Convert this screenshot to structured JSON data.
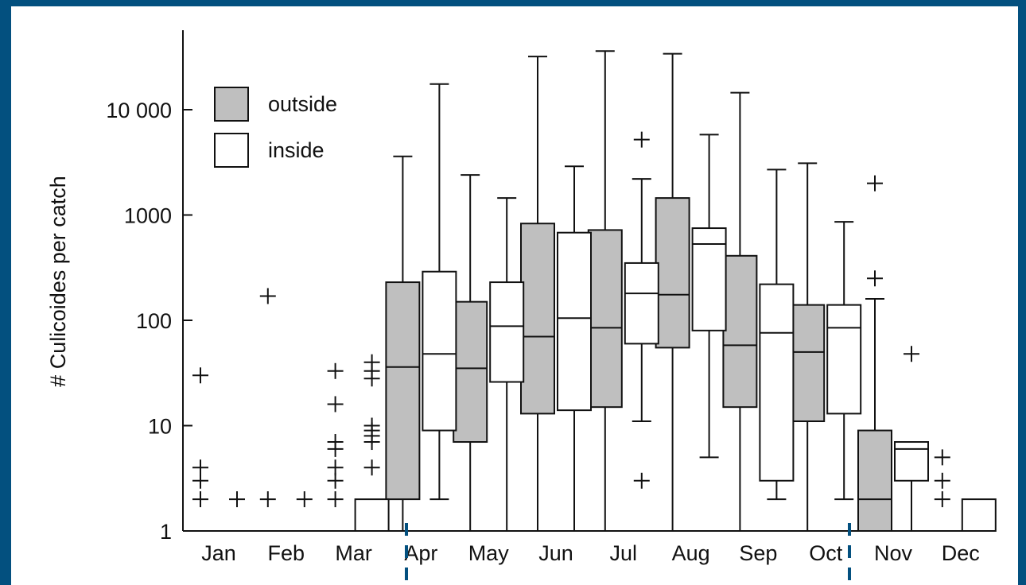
{
  "chart_data": {
    "type": "boxplot",
    "ylabel": "# Culicoides per catch",
    "yscale": "log",
    "ylim": [
      1,
      60000
    ],
    "yticks": [
      {
        "value": 1,
        "label": "1"
      },
      {
        "value": 10,
        "label": "10"
      },
      {
        "value": 100,
        "label": "100"
      },
      {
        "value": 1000,
        "label": "1000"
      },
      {
        "value": 10000,
        "label": "10 000"
      }
    ],
    "categories": [
      "Jan",
      "Feb",
      "Mar",
      "Apr",
      "May",
      "Jun",
      "Jul",
      "Aug",
      "Sep",
      "Oct",
      "Nov",
      "Dec"
    ],
    "legend": {
      "position": "top-left",
      "entries": [
        {
          "label": "outside",
          "fill": "#bfbfbf"
        },
        {
          "label": "inside",
          "fill": "#ffffff"
        }
      ]
    },
    "series": [
      {
        "name": "outside",
        "fill": "#bfbfbf",
        "boxes": [
          {
            "cat": "Jan",
            "min": 1,
            "q1": 1,
            "median": 1,
            "q3": 1,
            "max": 1,
            "outliers": [
              2,
              3,
              4,
              30
            ]
          },
          {
            "cat": "Feb",
            "min": 1,
            "q1": 1,
            "median": 1,
            "q3": 1,
            "max": 1,
            "outliers": [
              2,
              170
            ]
          },
          {
            "cat": "Mar",
            "min": 1,
            "q1": 1,
            "median": 1,
            "q3": 1,
            "max": 1,
            "outliers": [
              2,
              3,
              4,
              6,
              7,
              16,
              33
            ]
          },
          {
            "cat": "Apr",
            "min": 1,
            "q1": 2,
            "median": 36,
            "q3": 230,
            "max": 3600,
            "outliers": []
          },
          {
            "cat": "May",
            "min": 1,
            "q1": 7,
            "median": 35,
            "q3": 150,
            "max": 2400,
            "outliers": []
          },
          {
            "cat": "Jun",
            "min": 1,
            "q1": 13,
            "median": 70,
            "q3": 830,
            "max": 32000,
            "outliers": []
          },
          {
            "cat": "Jul",
            "min": 1,
            "q1": 15,
            "median": 85,
            "q3": 720,
            "max": 36000,
            "outliers": []
          },
          {
            "cat": "Aug",
            "min": 1,
            "q1": 55,
            "median": 175,
            "q3": 1450,
            "max": 34000,
            "outliers": []
          },
          {
            "cat": "Sep",
            "min": 1,
            "q1": 15,
            "median": 58,
            "q3": 410,
            "max": 14500,
            "outliers": []
          },
          {
            "cat": "Oct",
            "min": 1,
            "q1": 11,
            "median": 50,
            "q3": 140,
            "max": 3100,
            "outliers": []
          },
          {
            "cat": "Nov",
            "min": 1,
            "q1": 1,
            "median": 2,
            "q3": 9,
            "max": 160,
            "outliers": [
              250,
              2000
            ]
          },
          {
            "cat": "Dec",
            "min": 1,
            "q1": 1,
            "median": 1,
            "q3": 1,
            "max": 1,
            "outliers": [
              2,
              3,
              5
            ]
          }
        ]
      },
      {
        "name": "inside",
        "fill": "#ffffff",
        "boxes": [
          {
            "cat": "Jan",
            "min": 1,
            "q1": 1,
            "median": 1,
            "q3": 1,
            "max": 1,
            "outliers": [
              2
            ]
          },
          {
            "cat": "Feb",
            "min": 1,
            "q1": 1,
            "median": 1,
            "q3": 1,
            "max": 1,
            "outliers": [
              2
            ]
          },
          {
            "cat": "Mar",
            "min": 1,
            "q1": 1,
            "median": 1,
            "q3": 2,
            "max": 2,
            "outliers": [
              4,
              7,
              8,
              9,
              10,
              28,
              33,
              40
            ]
          },
          {
            "cat": "Apr",
            "min": 2,
            "q1": 9,
            "median": 48,
            "q3": 290,
            "max": 17500,
            "outliers": []
          },
          {
            "cat": "May",
            "min": 1,
            "q1": 26,
            "median": 88,
            "q3": 230,
            "max": 1450,
            "outliers": []
          },
          {
            "cat": "Jun",
            "min": 1,
            "q1": 14,
            "median": 105,
            "q3": 680,
            "max": 2900,
            "outliers": []
          },
          {
            "cat": "Jul",
            "min": 11,
            "q1": 60,
            "median": 180,
            "q3": 350,
            "max": 2200,
            "outliers": [
              3,
              5200
            ]
          },
          {
            "cat": "Aug",
            "min": 5,
            "q1": 80,
            "median": 530,
            "q3": 750,
            "max": 5800,
            "outliers": []
          },
          {
            "cat": "Sep",
            "min": 2,
            "q1": 3,
            "median": 76,
            "q3": 220,
            "max": 2700,
            "outliers": []
          },
          {
            "cat": "Oct",
            "min": 2,
            "q1": 13,
            "median": 85,
            "q3": 140,
            "max": 860,
            "outliers": []
          },
          {
            "cat": "Nov",
            "min": 1,
            "q1": 3,
            "median": 6,
            "q3": 7,
            "max": 7,
            "outliers": [
              48
            ]
          },
          {
            "cat": "Dec",
            "min": 1,
            "q1": 1,
            "median": 1,
            "q3": 2,
            "max": 2,
            "outliers": []
          }
        ]
      }
    ],
    "annotations": [
      {
        "type": "dashed-vertical-line",
        "at": "Apr",
        "color": "#03507f"
      },
      {
        "type": "dashed-vertical-line",
        "at": "Nov",
        "color": "#03507f"
      }
    ]
  }
}
